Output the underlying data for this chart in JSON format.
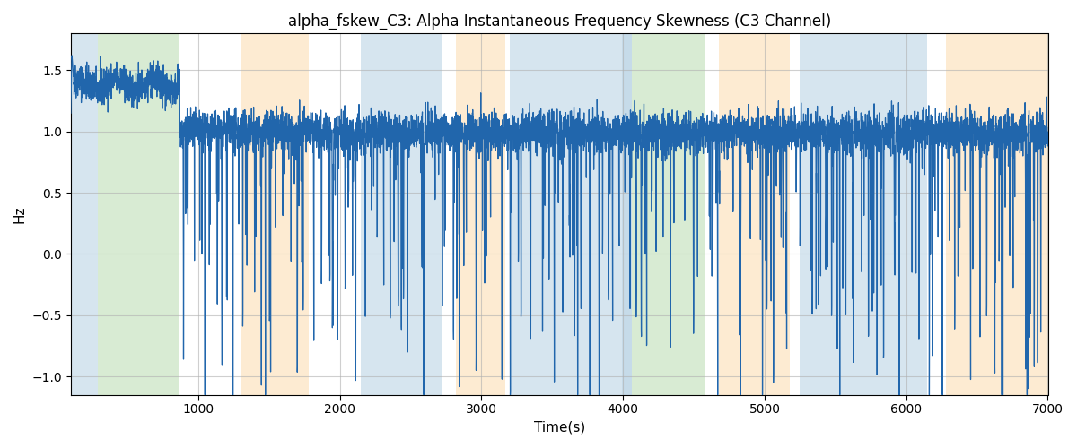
{
  "title": "alpha_fskew_C3: Alpha Instantaneous Frequency Skewness (C3 Channel)",
  "xlabel": "Time(s)",
  "ylabel": "Hz",
  "xlim": [
    100,
    7000
  ],
  "ylim": [
    -1.15,
    1.8
  ],
  "line_color": "#2166ac",
  "line_width": 0.9,
  "bg_bands": [
    {
      "xmin": 100,
      "xmax": 290,
      "color": "#aecde1",
      "alpha": 0.5
    },
    {
      "xmin": 290,
      "xmax": 870,
      "color": "#b2d8a8",
      "alpha": 0.5
    },
    {
      "xmin": 1300,
      "xmax": 1780,
      "color": "#fdd9a6",
      "alpha": 0.5
    },
    {
      "xmin": 2150,
      "xmax": 2720,
      "color": "#aecde1",
      "alpha": 0.5
    },
    {
      "xmin": 2820,
      "xmax": 3170,
      "color": "#fdd9a6",
      "alpha": 0.5
    },
    {
      "xmin": 3200,
      "xmax": 3990,
      "color": "#aecde1",
      "alpha": 0.5
    },
    {
      "xmin": 3990,
      "xmax": 4060,
      "color": "#aecde1",
      "alpha": 0.7
    },
    {
      "xmin": 4060,
      "xmax": 4580,
      "color": "#b2d8a8",
      "alpha": 0.5
    },
    {
      "xmin": 4680,
      "xmax": 5180,
      "color": "#fdd9a6",
      "alpha": 0.5
    },
    {
      "xmin": 5250,
      "xmax": 6150,
      "color": "#aecde1",
      "alpha": 0.5
    },
    {
      "xmin": 6280,
      "xmax": 7000,
      "color": "#fdd9a6",
      "alpha": 0.5
    }
  ],
  "figsize": [
    12,
    5
  ],
  "dpi": 100,
  "title_fontsize": 12,
  "axis_fontsize": 11,
  "tick_fontsize": 10,
  "grid_color": "#b0b0b0",
  "grid_alpha": 0.6,
  "xticks": [
    1000,
    2000,
    3000,
    4000,
    5000,
    6000,
    7000
  ],
  "yticks": [
    -1.0,
    -0.5,
    0.0,
    0.5,
    1.0,
    1.5
  ]
}
